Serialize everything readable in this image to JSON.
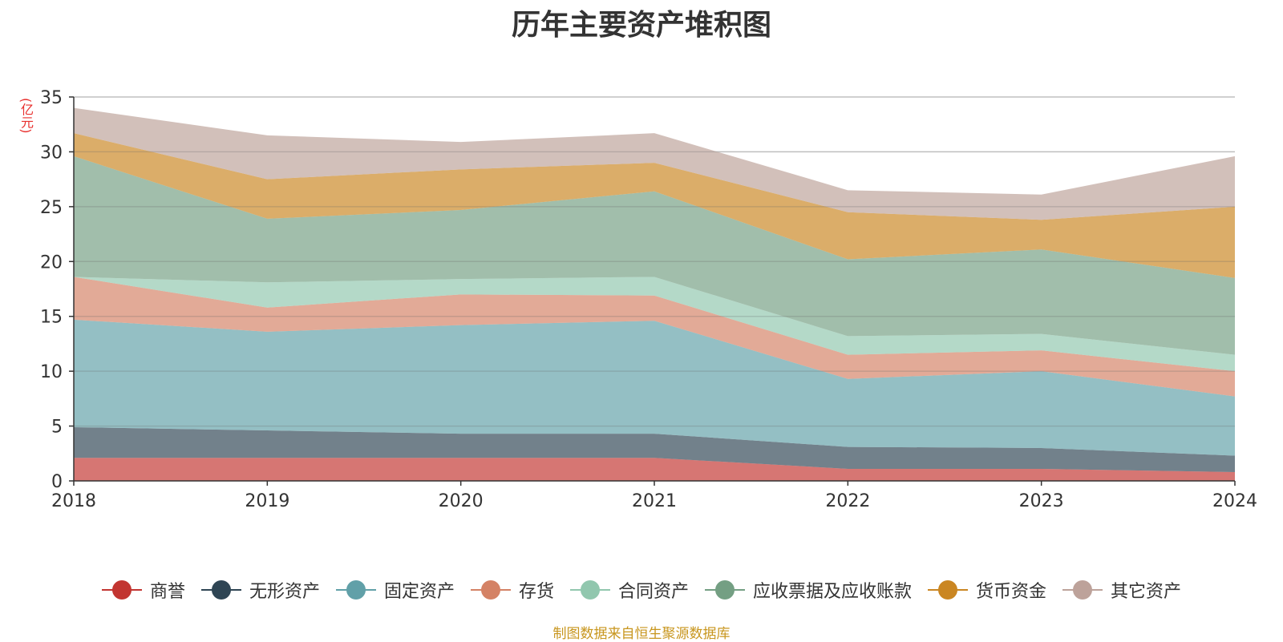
{
  "chart_data": {
    "type": "area",
    "stacked": true,
    "title": "历年主要资产堆积图",
    "ylabel": "(亿元)",
    "ylim": [
      0,
      35
    ],
    "yticks": [
      0,
      5,
      10,
      15,
      20,
      25,
      30,
      35
    ],
    "grid": true,
    "legend_position": "bottom",
    "categories": [
      "2018",
      "2019",
      "2020",
      "2021",
      "2022",
      "2023",
      "2024"
    ],
    "series": [
      {
        "name": "商誉",
        "color": "#c23531",
        "values": [
          2.1,
          2.1,
          2.1,
          2.1,
          1.1,
          1.1,
          0.8
        ]
      },
      {
        "name": "无形资产",
        "color": "#2f4554",
        "values": [
          2.8,
          2.5,
          2.2,
          2.2,
          2.0,
          1.9,
          1.5
        ]
      },
      {
        "name": "固定资产",
        "color": "#61a0a8",
        "values": [
          9.8,
          9.0,
          9.9,
          10.3,
          6.2,
          7.0,
          5.4
        ]
      },
      {
        "name": "存货",
        "color": "#d48265",
        "values": [
          3.9,
          2.2,
          2.8,
          2.3,
          2.2,
          1.9,
          2.3
        ]
      },
      {
        "name": "合同资产",
        "color": "#91c7ae",
        "values": [
          0.0,
          2.3,
          1.4,
          1.7,
          1.7,
          1.5,
          1.5
        ]
      },
      {
        "name": "应收票据及应收账款",
        "color": "#749f83",
        "values": [
          11.0,
          5.8,
          6.3,
          7.8,
          7.0,
          7.7,
          7.0
        ]
      },
      {
        "name": "货币资金",
        "color": "#ca8622",
        "values": [
          2.1,
          3.6,
          3.7,
          2.6,
          4.3,
          2.7,
          6.5
        ]
      },
      {
        "name": "其它资产",
        "color": "#bda29a",
        "values": [
          2.3,
          4.0,
          2.5,
          2.7,
          2.0,
          2.3,
          4.6
        ]
      }
    ]
  },
  "source_note": "制图数据来自恒生聚源数据库"
}
